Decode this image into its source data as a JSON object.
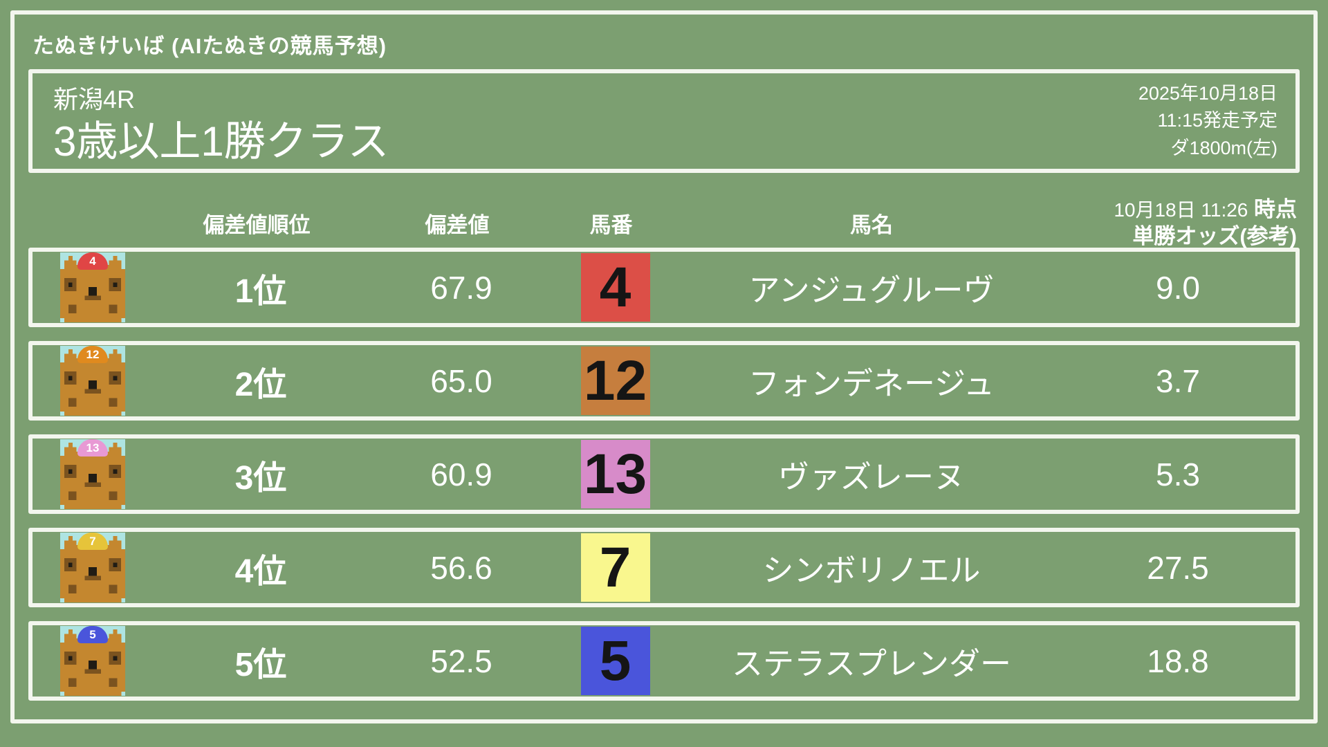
{
  "colors": {
    "background": "#7C9F71",
    "chalk": "#F3F6EE",
    "text": "#FFFFFF",
    "badge_text": "#151515",
    "icon_bg": "#AEE4E2"
  },
  "site_title": "たぬきけいば (AIたぬきの競馬予想)",
  "race": {
    "course": "新潟4R",
    "name": "3歳以上1勝クラス",
    "date": "2025年10月18日",
    "start_time": "11:15発走予定",
    "track": "ダ1800m(左)"
  },
  "table": {
    "headers": {
      "rank": "偏差値順位",
      "deviation": "偏差値",
      "number": "馬番",
      "name": "馬名",
      "odds_time": "10月18日 11:26",
      "odds_time_suffix": "時点",
      "odds_label": "単勝オッズ(参考)"
    },
    "rows": [
      {
        "rank": "1位",
        "deviation": "67.9",
        "number": "4",
        "badge_color": "#DC4F47",
        "cap_color": "#E04545",
        "name": "アンジュグルーヴ",
        "odds": "9.0"
      },
      {
        "rank": "2位",
        "deviation": "65.0",
        "number": "12",
        "badge_color": "#C67E3E",
        "cap_color": "#E08A1E",
        "name": "フォンデネージュ",
        "odds": "3.7"
      },
      {
        "rank": "3位",
        "deviation": "60.9",
        "number": "13",
        "badge_color": "#D78BC9",
        "cap_color": "#E899D4",
        "name": "ヴァズレーヌ",
        "odds": "5.3"
      },
      {
        "rank": "4位",
        "deviation": "56.6",
        "number": "7",
        "badge_color": "#F9F78E",
        "cap_color": "#E6C43A",
        "name": "シンボリノエル",
        "odds": "27.5"
      },
      {
        "rank": "5位",
        "deviation": "52.5",
        "number": "5",
        "badge_color": "#4A55DB",
        "cap_color": "#4A55DB",
        "name": "ステラスプレンダー",
        "odds": "18.8"
      }
    ]
  },
  "icon": {
    "name": "tanuki-avatar",
    "palette": {
      "B": "#C4872F",
      "D": "#7B531F",
      "K": "#201C15"
    },
    "pixel_map": [
      "..B..........B..",
      ".BBB........BBB.",
      ".BBBBBBBBBBBBBB.",
      "BBBBBBBBBBBBBBBB",
      "BBBBBBBBBBBBBBBB",
      "BDDDBBBBBBBBDDDB",
      "BDKDBBBBBBBBDKDB",
      "BDDDBBBKKBBBDDDB",
      "BBBBBBBKKBBBBBBB",
      "BBBBBBDDDDBBBBBB",
      "BBBBBBBBBBBBBBBB",
      "BBDDBBBBBBBBDDBB",
      "BBDDBBBBBBBBDDBB",
      "BBBBBBBBBBBBBBBB",
      ".BBBBBBBBBBBBBB."
    ]
  }
}
